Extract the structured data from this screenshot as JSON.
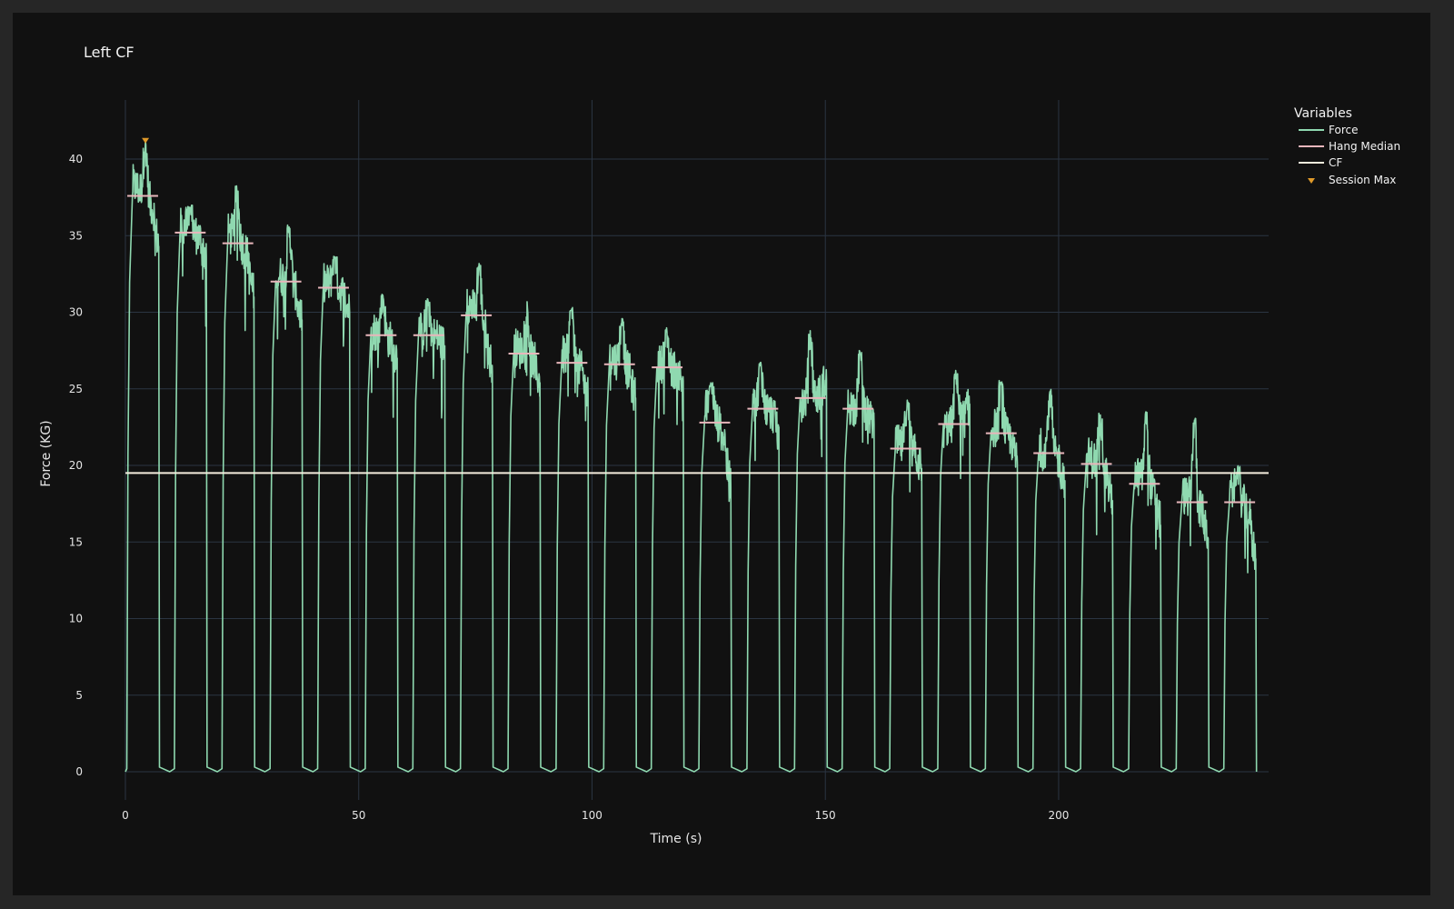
{
  "chart_data": {
    "type": "line",
    "title": "Left CF",
    "xlabel": "Time (s)",
    "ylabel": "Force (KG)",
    "xlim": [
      -6,
      245
    ],
    "ylim": [
      -2.5,
      43.5
    ],
    "x_ticks": [
      0,
      50,
      100,
      150,
      200
    ],
    "y_ticks": [
      0,
      5,
      10,
      15,
      20,
      25,
      30,
      35,
      40
    ],
    "grid": true,
    "legend": {
      "title": "Variables",
      "position": "top-right"
    },
    "colors": {
      "background": "#111111",
      "grid": "#2b3542",
      "force": "#8fd9b0",
      "hang_median": "#e8b6bb",
      "cf": "#f3ecdc",
      "session_max": "#e09a2a"
    },
    "series": [
      {
        "name": "Force",
        "kind": "line",
        "reps": [
          {
            "start": 0.3,
            "end": 7.3,
            "peak": 41.2,
            "median": 37.6,
            "end_value": 34.3
          },
          {
            "start": 10.5,
            "end": 17.5,
            "peak": 37.0,
            "median": 35.2,
            "end_value": 33.6
          },
          {
            "start": 20.7,
            "end": 27.7,
            "peak": 38.4,
            "median": 34.5,
            "end_value": 31.0
          },
          {
            "start": 31.0,
            "end": 38.0,
            "peak": 35.8,
            "median": 32.0,
            "end_value": 29.5
          },
          {
            "start": 41.2,
            "end": 48.2,
            "peak": 33.9,
            "median": 31.6,
            "end_value": 30.0
          },
          {
            "start": 51.4,
            "end": 58.4,
            "peak": 31.2,
            "median": 28.5,
            "end_value": 27.0
          },
          {
            "start": 61.6,
            "end": 68.6,
            "peak": 30.9,
            "median": 28.5,
            "end_value": 27.8
          },
          {
            "start": 71.8,
            "end": 78.8,
            "peak": 33.2,
            "median": 29.8,
            "end_value": 26.1
          },
          {
            "start": 82.0,
            "end": 89.0,
            "peak": 30.9,
            "median": 27.3,
            "end_value": 25.4
          },
          {
            "start": 92.3,
            "end": 99.3,
            "peak": 30.4,
            "median": 26.7,
            "end_value": 24.5
          },
          {
            "start": 102.5,
            "end": 109.5,
            "peak": 29.6,
            "median": 26.6,
            "end_value": 24.4
          },
          {
            "start": 112.7,
            "end": 119.7,
            "peak": 29.1,
            "median": 26.4,
            "end_value": 25.5
          },
          {
            "start": 122.9,
            "end": 129.9,
            "peak": 25.5,
            "median": 22.8,
            "end_value": 18.6
          },
          {
            "start": 133.2,
            "end": 140.2,
            "peak": 26.8,
            "median": 23.7,
            "end_value": 22.5
          },
          {
            "start": 143.4,
            "end": 150.4,
            "peak": 28.8,
            "median": 24.4,
            "end_value": 25.6
          },
          {
            "start": 153.6,
            "end": 160.6,
            "peak": 27.5,
            "median": 23.7,
            "end_value": 22.7
          },
          {
            "start": 163.8,
            "end": 170.8,
            "peak": 24.4,
            "median": 21.1,
            "end_value": 19.8
          },
          {
            "start": 174.1,
            "end": 181.1,
            "peak": 26.3,
            "median": 22.7,
            "end_value": 24.0
          },
          {
            "start": 184.3,
            "end": 191.3,
            "peak": 25.6,
            "median": 22.1,
            "end_value": 20.2
          },
          {
            "start": 194.5,
            "end": 201.5,
            "peak": 25.0,
            "median": 20.8,
            "end_value": 19.0
          },
          {
            "start": 204.7,
            "end": 211.7,
            "peak": 23.5,
            "median": 20.1,
            "end_value": 17.7
          },
          {
            "start": 215.0,
            "end": 222.0,
            "peak": 23.5,
            "median": 18.8,
            "end_value": 16.1
          },
          {
            "start": 225.2,
            "end": 232.2,
            "peak": 23.1,
            "median": 17.6,
            "end_value": 15.2
          },
          {
            "start": 235.4,
            "end": 242.4,
            "peak": 20.0,
            "median": 17.6,
            "end_value": 13.9
          }
        ]
      },
      {
        "name": "Hang Median",
        "kind": "segments",
        "values": [
          37.6,
          35.2,
          34.5,
          32.0,
          31.6,
          28.5,
          28.5,
          29.8,
          27.3,
          26.7,
          26.6,
          26.4,
          22.8,
          23.7,
          24.4,
          23.7,
          21.1,
          22.7,
          22.1,
          20.8,
          20.1,
          18.8,
          17.6,
          17.6
        ]
      },
      {
        "name": "CF",
        "kind": "hline",
        "value": 19.5,
        "x_range": [
          0,
          245
        ]
      },
      {
        "name": "Session Max",
        "kind": "marker",
        "x": 4.3,
        "y": 41.2
      }
    ]
  }
}
